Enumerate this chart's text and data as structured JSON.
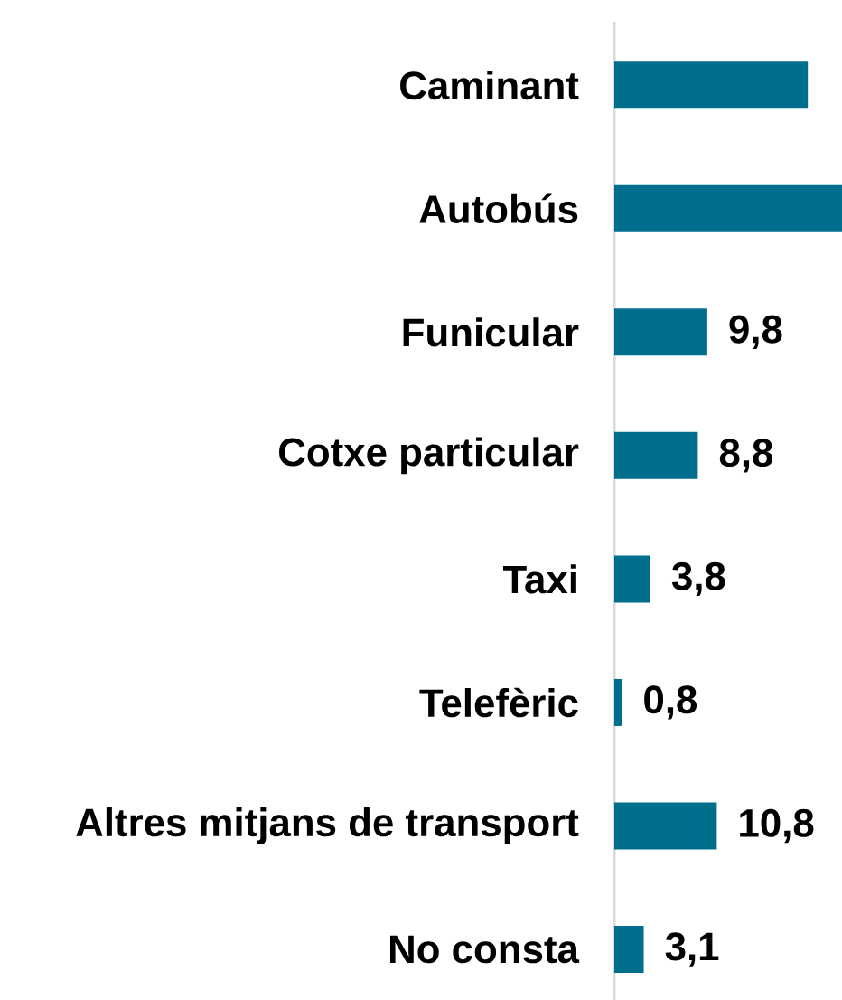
{
  "chart_data": {
    "type": "bar",
    "orientation": "horizontal",
    "categories": [
      "Caminant",
      "Autobús",
      "Funicular",
      "Cotxe particular",
      "Taxi",
      "Telefèric",
      "Altres mitjans de transport",
      "No consta"
    ],
    "values": [
      20.4,
      24,
      9.8,
      8.8,
      3.8,
      0.8,
      10.8,
      3.1
    ],
    "value_labels": [
      null,
      null,
      "9,8",
      "8,8",
      "3,8",
      "0,8",
      "10,8",
      "3,1"
    ],
    "color": "#006f8e",
    "xlim": [
      0,
      24
    ],
    "tick_labels": "y"
  }
}
